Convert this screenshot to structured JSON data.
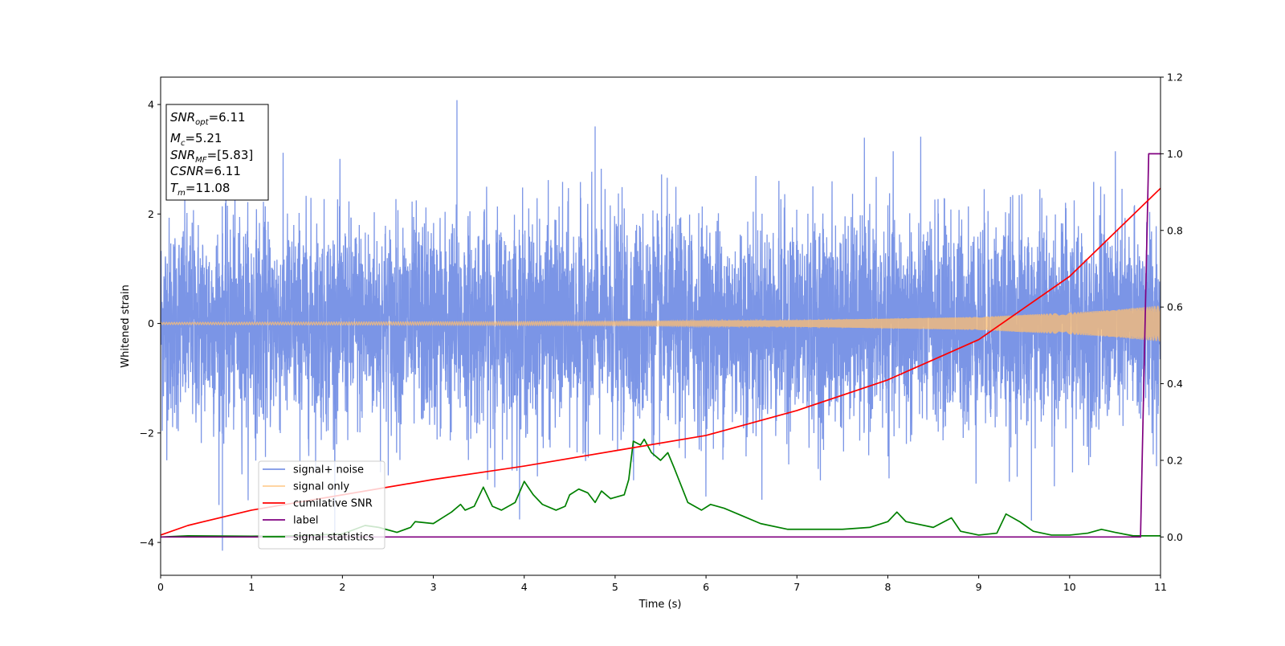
{
  "chart_data": {
    "type": "line",
    "xlabel": "Time (s)",
    "ylabel": "Whitened strain",
    "xlim": [
      0,
      11
    ],
    "ylim": [
      -4.6,
      4.5
    ],
    "y2lim": [
      -0.1,
      1.2
    ],
    "x_ticks": [
      "0",
      "1",
      "2",
      "3",
      "4",
      "5",
      "6",
      "7",
      "8",
      "9",
      "10",
      "11"
    ],
    "y_ticks": [
      "−4",
      "−2",
      "0",
      "2",
      "4"
    ],
    "y2_ticks": [
      "0.0",
      "0.2",
      "0.4",
      "0.6",
      "0.8",
      "1.0",
      "1.2"
    ],
    "legend_position": "lower-left",
    "annotation": {
      "snr_opt": "6.11",
      "mc": "5.21",
      "snr_mf": "[5.83]",
      "csnr": "6.11",
      "tm": "11.08"
    },
    "series": [
      {
        "name": "signal+ noise",
        "axis": "left",
        "color": "#7b95e6",
        "kind": "noise-band",
        "envelope_typical": 2.0,
        "peak_points": [
          {
            "x": 3.26,
            "y": 4.08
          },
          {
            "x": 0.68,
            "y": -4.15
          },
          {
            "x": 4.78,
            "y": 3.6
          },
          {
            "x": 9.58,
            "y": -3.6
          }
        ]
      },
      {
        "name": "signal only",
        "axis": "left",
        "color": "#ffbf70",
        "kind": "chirp",
        "amplitude": [
          {
            "x": 0,
            "y": 0.02
          },
          {
            "x": 5,
            "y": 0.04
          },
          {
            "x": 7,
            "y": 0.06
          },
          {
            "x": 9,
            "y": 0.12
          },
          {
            "x": 10,
            "y": 0.2
          },
          {
            "x": 10.5,
            "y": 0.25
          },
          {
            "x": 11,
            "y": 0.33
          }
        ]
      },
      {
        "name": "cumilative SNR",
        "axis": "right",
        "color": "#ff0000",
        "points": [
          {
            "x": 0,
            "y": 0.005
          },
          {
            "x": 0.3,
            "y": 0.03
          },
          {
            "x": 1,
            "y": 0.07
          },
          {
            "x": 2,
            "y": 0.11
          },
          {
            "x": 3,
            "y": 0.15
          },
          {
            "x": 4,
            "y": 0.185
          },
          {
            "x": 5,
            "y": 0.225
          },
          {
            "x": 6,
            "y": 0.265
          },
          {
            "x": 7,
            "y": 0.33
          },
          {
            "x": 8,
            "y": 0.41
          },
          {
            "x": 9,
            "y": 0.515
          },
          {
            "x": 10,
            "y": 0.68
          },
          {
            "x": 10.5,
            "y": 0.795
          },
          {
            "x": 11,
            "y": 0.91
          }
        ]
      },
      {
        "name": "label",
        "axis": "right",
        "color": "#800080",
        "points": [
          {
            "x": 0,
            "y": 0
          },
          {
            "x": 10.78,
            "y": 0
          },
          {
            "x": 10.87,
            "y": 1.0
          },
          {
            "x": 11,
            "y": 1.0
          }
        ]
      },
      {
        "name": "signal statistics",
        "axis": "right",
        "color": "#008000",
        "points": [
          {
            "x": 0,
            "y": 0.0
          },
          {
            "x": 0.3,
            "y": 0.003
          },
          {
            "x": 1,
            "y": 0.002
          },
          {
            "x": 1.5,
            "y": 0.003
          },
          {
            "x": 2.0,
            "y": 0.008
          },
          {
            "x": 2.25,
            "y": 0.03
          },
          {
            "x": 2.4,
            "y": 0.025
          },
          {
            "x": 2.6,
            "y": 0.012
          },
          {
            "x": 2.75,
            "y": 0.025
          },
          {
            "x": 2.8,
            "y": 0.04
          },
          {
            "x": 3.0,
            "y": 0.035
          },
          {
            "x": 3.1,
            "y": 0.05
          },
          {
            "x": 3.2,
            "y": 0.065
          },
          {
            "x": 3.3,
            "y": 0.085
          },
          {
            "x": 3.35,
            "y": 0.07
          },
          {
            "x": 3.45,
            "y": 0.08
          },
          {
            "x": 3.55,
            "y": 0.13
          },
          {
            "x": 3.65,
            "y": 0.08
          },
          {
            "x": 3.75,
            "y": 0.07
          },
          {
            "x": 3.9,
            "y": 0.09
          },
          {
            "x": 4.0,
            "y": 0.145
          },
          {
            "x": 4.1,
            "y": 0.11
          },
          {
            "x": 4.2,
            "y": 0.085
          },
          {
            "x": 4.35,
            "y": 0.07
          },
          {
            "x": 4.45,
            "y": 0.08
          },
          {
            "x": 4.5,
            "y": 0.11
          },
          {
            "x": 4.6,
            "y": 0.125
          },
          {
            "x": 4.7,
            "y": 0.115
          },
          {
            "x": 4.78,
            "y": 0.09
          },
          {
            "x": 4.85,
            "y": 0.12
          },
          {
            "x": 4.95,
            "y": 0.1
          },
          {
            "x": 5.1,
            "y": 0.11
          },
          {
            "x": 5.15,
            "y": 0.15
          },
          {
            "x": 5.2,
            "y": 0.25
          },
          {
            "x": 5.28,
            "y": 0.24
          },
          {
            "x": 5.32,
            "y": 0.255
          },
          {
            "x": 5.4,
            "y": 0.22
          },
          {
            "x": 5.5,
            "y": 0.2
          },
          {
            "x": 5.58,
            "y": 0.22
          },
          {
            "x": 5.65,
            "y": 0.18
          },
          {
            "x": 5.8,
            "y": 0.09
          },
          {
            "x": 5.95,
            "y": 0.07
          },
          {
            "x": 6.05,
            "y": 0.085
          },
          {
            "x": 6.2,
            "y": 0.075
          },
          {
            "x": 6.4,
            "y": 0.055
          },
          {
            "x": 6.6,
            "y": 0.035
          },
          {
            "x": 6.9,
            "y": 0.02
          },
          {
            "x": 7.2,
            "y": 0.02
          },
          {
            "x": 7.5,
            "y": 0.02
          },
          {
            "x": 7.8,
            "y": 0.025
          },
          {
            "x": 8.0,
            "y": 0.04
          },
          {
            "x": 8.1,
            "y": 0.065
          },
          {
            "x": 8.2,
            "y": 0.04
          },
          {
            "x": 8.5,
            "y": 0.025
          },
          {
            "x": 8.7,
            "y": 0.05
          },
          {
            "x": 8.8,
            "y": 0.015
          },
          {
            "x": 9.0,
            "y": 0.005
          },
          {
            "x": 9.2,
            "y": 0.01
          },
          {
            "x": 9.3,
            "y": 0.06
          },
          {
            "x": 9.45,
            "y": 0.04
          },
          {
            "x": 9.6,
            "y": 0.015
          },
          {
            "x": 9.8,
            "y": 0.005
          },
          {
            "x": 10.0,
            "y": 0.005
          },
          {
            "x": 10.2,
            "y": 0.01
          },
          {
            "x": 10.35,
            "y": 0.02
          },
          {
            "x": 10.5,
            "y": 0.012
          },
          {
            "x": 10.7,
            "y": 0.003
          },
          {
            "x": 11,
            "y": 0.003
          }
        ]
      }
    ]
  }
}
